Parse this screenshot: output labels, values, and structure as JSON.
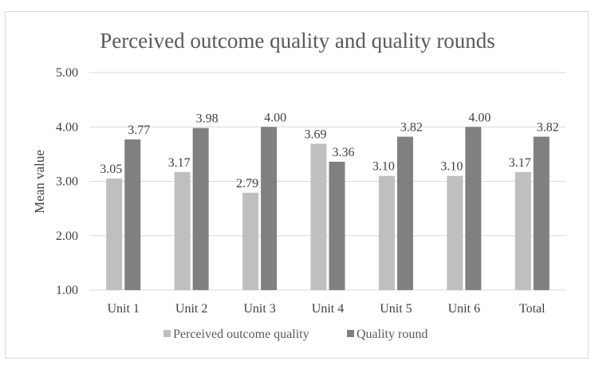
{
  "chart_data": {
    "type": "bar",
    "title": "Perceived outcome quality and quality rounds",
    "xlabel": "",
    "ylabel": "Mean value",
    "ylim": [
      1.0,
      5.0
    ],
    "yticks": [
      "1.00",
      "2.00",
      "3.00",
      "4.00",
      "5.00"
    ],
    "grid": true,
    "legend_position": "bottom",
    "categories": [
      "Unit 1",
      "Unit 2",
      "Unit 3",
      "Unit 4",
      "Unit 5",
      "Unit 6",
      "Total"
    ],
    "series": [
      {
        "name": "Perceived outcome quality",
        "color": "#bfbfbf",
        "values": [
          3.05,
          3.17,
          2.79,
          3.69,
          3.1,
          3.1,
          3.17
        ],
        "labels": [
          "3.05",
          "3.17",
          "2.79",
          "3.69",
          "3.10",
          "3.10",
          "3.17"
        ]
      },
      {
        "name": "Quality round",
        "color": "#808080",
        "values": [
          3.77,
          3.98,
          4.0,
          3.36,
          3.82,
          4.0,
          3.82
        ],
        "labels": [
          "3.77",
          "3.98",
          "4.00",
          "3.36",
          "3.82",
          "4.00",
          "3.82"
        ]
      }
    ]
  }
}
